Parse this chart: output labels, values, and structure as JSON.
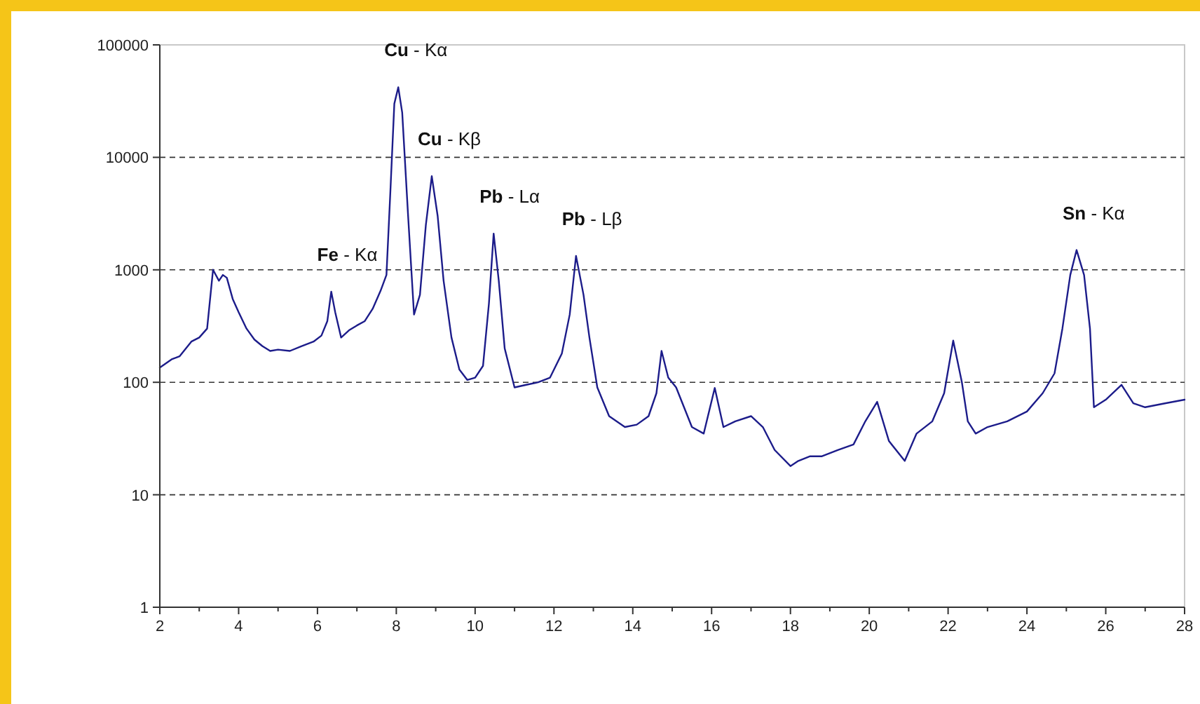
{
  "chart_data": {
    "type": "line",
    "log": "y",
    "xlim": [
      2,
      28
    ],
    "xticks": [
      2,
      {
        "value": 3,
        "label": null
      },
      4,
      {
        "value": 5,
        "label": null
      },
      6,
      {
        "value": 7,
        "label": null
      },
      8,
      {
        "value": 9,
        "label": null
      },
      10,
      {
        "value": 11,
        "label": null
      },
      12,
      {
        "value": 13,
        "label": null
      },
      14,
      {
        "value": 15,
        "label": null
      },
      16,
      {
        "value": 17,
        "label": null
      },
      18,
      {
        "value": 19,
        "label": null
      },
      20,
      {
        "value": 21,
        "label": null
      },
      22,
      {
        "value": 23,
        "label": null
      },
      24,
      {
        "value": 25,
        "label": null
      },
      26,
      {
        "value": 27,
        "label": null
      },
      28
    ],
    "ylim": [
      1,
      100000
    ],
    "yticks": [
      1,
      10,
      100,
      1000,
      10000,
      100000
    ],
    "grid": "y",
    "line_style": "solid",
    "marker": "none",
    "series": [
      {
        "color": "#1c1c8a",
        "x": [
          2.0,
          2.3,
          2.5,
          2.8,
          3.0,
          3.2,
          3.35,
          3.5,
          3.6,
          3.7,
          3.85,
          4.0,
          4.2,
          4.4,
          4.6,
          4.8,
          5.0,
          5.3,
          5.6,
          5.9,
          6.1,
          6.25,
          6.35,
          6.45,
          6.6,
          6.8,
          7.0,
          7.2,
          7.4,
          7.6,
          7.75,
          7.85,
          7.95,
          8.05,
          8.15,
          8.3,
          8.45,
          8.6,
          8.75,
          8.9,
          9.05,
          9.2,
          9.4,
          9.6,
          9.8,
          10.0,
          10.2,
          10.35,
          10.47,
          10.6,
          10.75,
          11.0,
          11.3,
          11.6,
          11.9,
          12.2,
          12.4,
          12.56,
          12.75,
          12.9,
          13.1,
          13.4,
          13.8,
          14.1,
          14.4,
          14.6,
          14.73,
          14.9,
          15.1,
          15.3,
          15.5,
          15.8,
          16.08,
          16.3,
          16.6,
          17.0,
          17.3,
          17.6,
          18.0,
          18.2,
          18.5,
          18.8,
          19.2,
          19.6,
          19.9,
          20.2,
          20.5,
          20.9,
          21.2,
          21.6,
          21.9,
          22.13,
          22.35,
          22.5,
          22.7,
          23.0,
          23.5,
          24.0,
          24.4,
          24.7,
          24.9,
          25.1,
          25.26,
          25.45,
          25.6,
          25.7,
          26.0,
          26.4,
          26.7,
          27.0,
          27.5,
          28.0
        ],
        "values": [
          135,
          160,
          170,
          230,
          250,
          300,
          1000,
          800,
          900,
          850,
          550,
          420,
          300,
          240,
          210,
          190,
          195,
          190,
          210,
          230,
          260,
          350,
          640,
          420,
          250,
          290,
          320,
          350,
          450,
          650,
          900,
          5000,
          30000,
          42000,
          25000,
          3000,
          400,
          600,
          2500,
          6800,
          3000,
          800,
          250,
          130,
          105,
          110,
          140,
          500,
          2100,
          800,
          200,
          90,
          95,
          100,
          110,
          180,
          400,
          1330,
          600,
          250,
          90,
          50,
          40,
          42,
          50,
          80,
          190,
          110,
          90,
          60,
          40,
          35,
          89,
          40,
          45,
          50,
          40,
          25,
          18,
          20,
          22,
          22,
          25,
          28,
          45,
          67,
          30,
          20,
          35,
          45,
          80,
          235,
          100,
          45,
          35,
          40,
          45,
          55,
          80,
          120,
          300,
          900,
          1500,
          900,
          300,
          60,
          70,
          95,
          65,
          60,
          65,
          70
        ]
      }
    ],
    "annotations": [
      {
        "text": "Fe - Kα",
        "x": 6.35,
        "y": 640
      },
      {
        "text": "Cu - Kα",
        "x": 8.05,
        "y": 42000
      },
      {
        "text": "Cu - Kβ",
        "x": 8.9,
        "y": 6800
      },
      {
        "text": "Pb - Lα",
        "x": 10.47,
        "y": 2100
      },
      {
        "text": "Pb - Lβ",
        "x": 12.56,
        "y": 1330
      },
      {
        "text": "Sn - Kα",
        "x": 25.26,
        "y": 1500
      }
    ]
  }
}
